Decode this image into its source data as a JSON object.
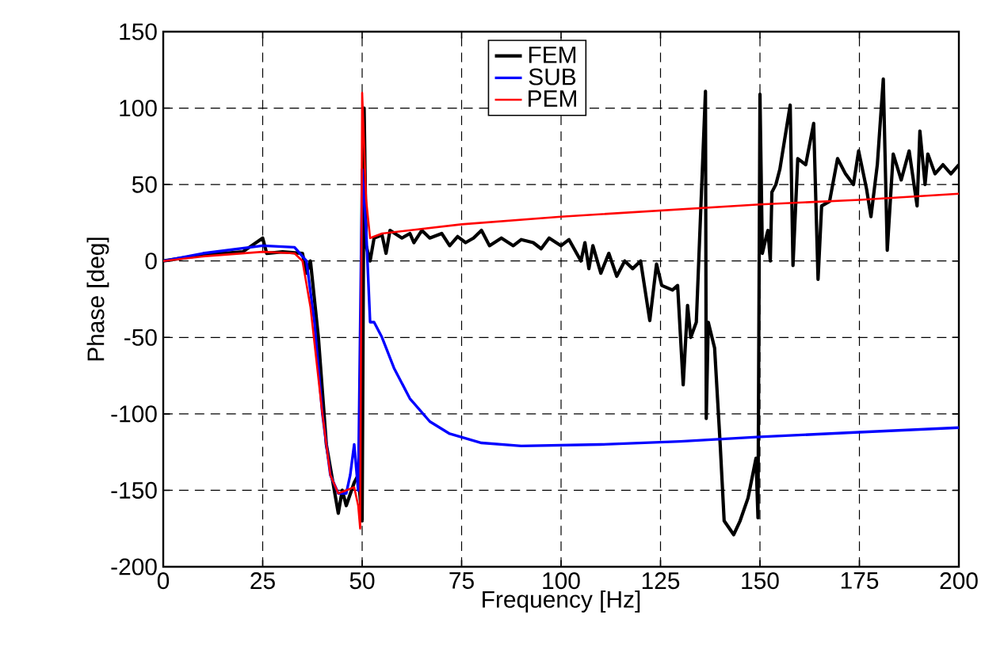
{
  "chart_data": {
    "type": "line",
    "xlabel": "Frequency [Hz]",
    "ylabel": "Phase [deg]",
    "xlim": [
      0,
      200
    ],
    "ylim": [
      -200,
      150
    ],
    "xticks": [
      0,
      25,
      50,
      75,
      100,
      125,
      150,
      175,
      200
    ],
    "yticks": [
      -200,
      -150,
      -100,
      -50,
      0,
      50,
      100,
      150
    ],
    "grid": true,
    "legend": "top",
    "series": [
      {
        "name": "FEM",
        "color": "#000000",
        "x": [
          0,
          5,
          10,
          20,
          25,
          26,
          30,
          35,
          36,
          37,
          39,
          41,
          43,
          44,
          45,
          46,
          48,
          49,
          50,
          50.5,
          51,
          52,
          53,
          55,
          56,
          57,
          60,
          62,
          63,
          65,
          67,
          70,
          72,
          74,
          76,
          78,
          80,
          82,
          85,
          88,
          90,
          93,
          95,
          97,
          100,
          102,
          105,
          106,
          107,
          108,
          110,
          112,
          114,
          116,
          118,
          120,
          122.3,
          124,
          125.3,
          128,
          129.3,
          130.7,
          131.8,
          132.6,
          134,
          136.3,
          136.5,
          137,
          138.6,
          140,
          141,
          143.4,
          145,
          147,
          149,
          149.5,
          150,
          150.6,
          151.5,
          152,
          152.6,
          153,
          154,
          155,
          157.6,
          158.3,
          159.5,
          161.5,
          163.5,
          164.6,
          165.5,
          167.5,
          169.5,
          171.5,
          173.5,
          174.8,
          176.8,
          177.9,
          179.5,
          181,
          182,
          183.5,
          185.5,
          187.5,
          189.5,
          190.2,
          191.5,
          192.2,
          194,
          196,
          198,
          200
        ],
        "values": [
          0,
          2,
          4,
          6,
          15,
          5,
          6,
          5,
          -8,
          0,
          -50,
          -120,
          -150,
          -165,
          -150,
          -160,
          -145,
          -140,
          -170,
          100,
          10,
          0,
          15,
          17,
          5,
          20,
          15,
          18,
          12,
          20,
          15,
          18,
          10,
          16,
          12,
          15,
          20,
          10,
          15,
          10,
          14,
          12,
          8,
          15,
          10,
          14,
          0,
          12,
          -5,
          10,
          -8,
          5,
          -10,
          0,
          -5,
          0,
          -39,
          -2,
          -16,
          -19,
          -16,
          -81,
          -29,
          -50,
          -40,
          111,
          -103,
          -40,
          -57,
          -120,
          -170,
          -179,
          -170,
          -155,
          -129,
          -168,
          109,
          5,
          15,
          20,
          0,
          45,
          50,
          60,
          102,
          -3,
          67,
          63,
          90,
          -12,
          36,
          39,
          67,
          57,
          50,
          72,
          47,
          29,
          63,
          119,
          7,
          70,
          53,
          72,
          36,
          85,
          50,
          70,
          57,
          63,
          57,
          63
        ]
      },
      {
        "name": "SUB",
        "color": "#0000ff",
        "x": [
          0,
          10,
          25,
          33,
          36,
          38,
          40,
          42,
          44,
          46,
          47,
          48,
          49,
          50,
          51,
          52,
          53,
          55,
          58,
          62,
          67,
          72,
          80,
          90,
          110,
          130,
          150,
          175,
          200
        ],
        "values": [
          0,
          5,
          10,
          9,
          0,
          -40,
          -100,
          -140,
          -152,
          -152,
          -140,
          -120,
          -150,
          60,
          20,
          -40,
          -40,
          -50,
          -70,
          -90,
          -105,
          -113,
          -119,
          -121,
          -120,
          -118,
          -115,
          -112,
          -109
        ]
      },
      {
        "name": "PEM",
        "color": "#ff0000",
        "x": [
          0,
          10,
          25,
          33,
          35,
          37,
          40,
          42,
          44,
          46,
          48,
          49,
          49.5,
          50,
          51,
          52,
          55,
          75,
          100,
          125,
          150,
          175,
          200
        ],
        "values": [
          0,
          3,
          6,
          5,
          0,
          -30,
          -100,
          -140,
          -152,
          -150,
          -148,
          -160,
          -175,
          110,
          40,
          15,
          18,
          24,
          29,
          33,
          37,
          40,
          44
        ]
      }
    ]
  }
}
